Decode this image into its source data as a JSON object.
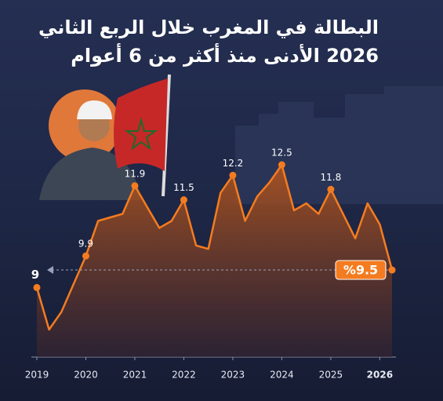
{
  "chart_data": {
    "type": "area",
    "title": "البطالة في المغرب خلال الربع الثاني",
    "subtitle": "2026 الأدنى منذ أكثر من 6 أعوام",
    "color": "#f47c20",
    "categories": [
      "2019",
      null,
      null,
      null,
      "2020",
      null,
      null,
      null,
      "2021",
      null,
      null,
      null,
      "2022",
      null,
      null,
      null,
      "2023",
      null,
      null,
      null,
      "2024",
      null,
      null,
      null,
      "2025",
      null,
      null,
      null,
      "2026",
      null
    ],
    "values": [
      9,
      7.8,
      8.3,
      9.1,
      9.9,
      10.9,
      11.0,
      11.1,
      11.9,
      11.3,
      10.7,
      10.9,
      11.5,
      10.2,
      10.1,
      11.7,
      12.2,
      10.9,
      11.6,
      12.0,
      12.5,
      11.2,
      11.4,
      11.1,
      11.8,
      11.1,
      10.4,
      11.4,
      10.8,
      9.5
    ],
    "value_labels": [
      "9",
      null,
      null,
      null,
      "9.9",
      null,
      null,
      null,
      "11.9",
      null,
      null,
      null,
      "11.5",
      null,
      null,
      null,
      "12.2",
      null,
      null,
      null,
      "12.5",
      null,
      null,
      null,
      "11.8",
      null,
      null,
      null,
      null,
      "%9.5"
    ]
  }
}
